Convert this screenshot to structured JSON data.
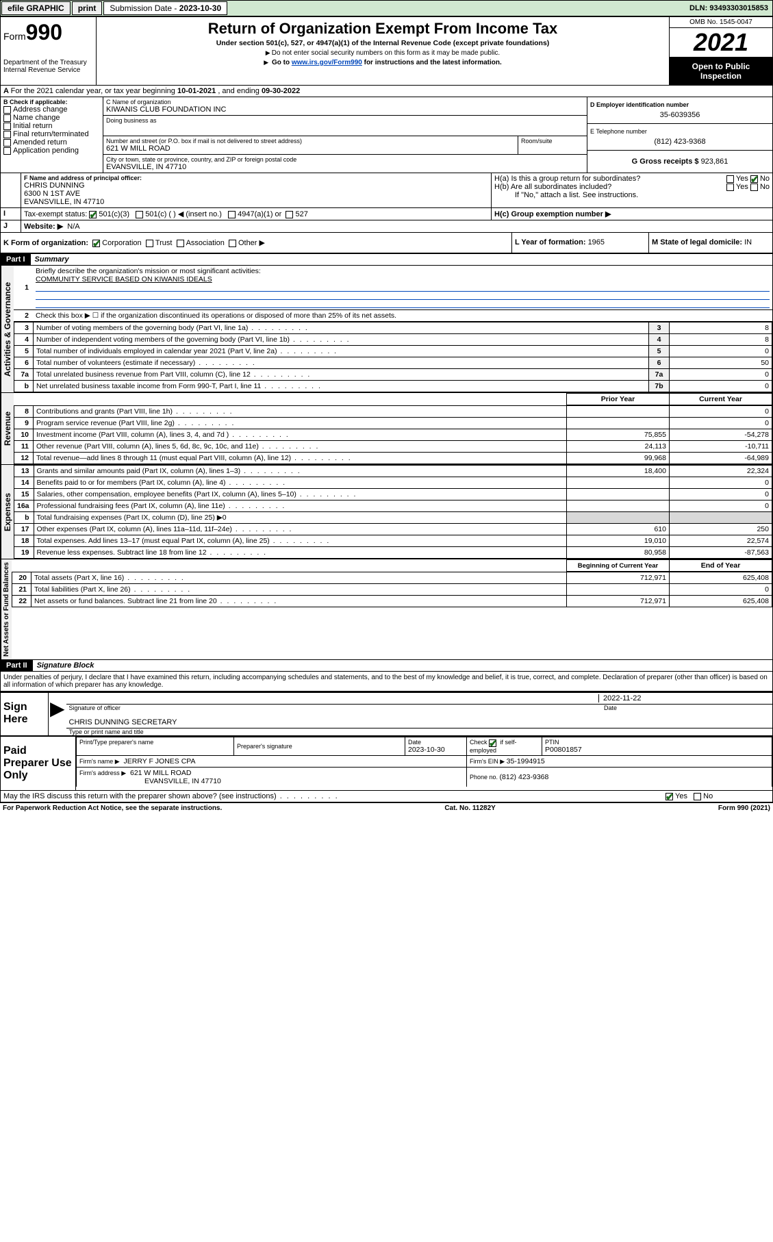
{
  "topbar": {
    "efile": "efile GRAPHIC",
    "print": "print",
    "sub_label": "Submission Date - ",
    "sub_date": "2023-10-30",
    "dln": "DLN: 93493303015853"
  },
  "header": {
    "form_label": "Form",
    "form_num": "990",
    "dept": "Department of the Treasury",
    "irs": "Internal Revenue Service",
    "title": "Return of Organization Exempt From Income Tax",
    "sub": "Under section 501(c), 527, or 4947(a)(1) of the Internal Revenue Code (except private foundations)",
    "note1": "Do not enter social security numbers on this form as it may be made public.",
    "note2_a": "Go to ",
    "note2_link": "www.irs.gov/Form990",
    "note2_b": " for instructions and the latest information.",
    "omb": "OMB No. 1545-0047",
    "year": "2021",
    "otpi": "Open to Public Inspection"
  },
  "blockA": {
    "a_text": "For the 2021 calendar year, or tax year beginning ",
    "a_begin": "10-01-2021",
    "a_mid": " , and ending ",
    "a_end": "09-30-2022",
    "b_label": "B Check if applicable:",
    "b_opts": [
      "Address change",
      "Name change",
      "Initial return",
      "Final return/terminated",
      "Amended return",
      "Application pending"
    ],
    "c_label": "C Name of organization",
    "c_name": "KIWANIS CLUB FOUNDATION INC",
    "dba_label": "Doing business as",
    "addr_label": "Number and street (or P.O. box if mail is not delivered to street address)",
    "room_label": "Room/suite",
    "addr": "621 W MILL ROAD",
    "city_label": "City or town, state or province, country, and ZIP or foreign postal code",
    "city": "EVANSVILLE, IN  47710",
    "d_label": "D Employer identification number",
    "d_ein": "35-6039356",
    "e_label": "E Telephone number",
    "e_phone": "(812) 423-9368",
    "g_label": "G Gross receipts $ ",
    "g_val": "923,861",
    "f_label": "F Name and address of principal officer:",
    "f_name": "CHRIS DUNNING",
    "f_addr1": "6300 N 1ST AVE",
    "f_addr2": "EVANSVILLE, IN  47710",
    "ha_label": "H(a)  Is this a group return for subordinates?",
    "hb_label": "H(b)  Are all subordinates included?",
    "h_note": "If \"No,\" attach a list. See instructions.",
    "hc_label": "H(c)  Group exemption number ▶",
    "i_label": "Tax-exempt status:",
    "i_501c3": "501(c)(3)",
    "i_501c": "501(c) (  ) ◀ (insert no.)",
    "i_4947": "4947(a)(1) or",
    "i_527": "527",
    "j_label": "Website: ▶",
    "j_val": "N/A",
    "k_label": "K Form of organization:",
    "k_opts": [
      "Corporation",
      "Trust",
      "Association",
      "Other ▶"
    ],
    "l_label": "L Year of formation: ",
    "l_val": "1965",
    "m_label": "M State of legal domicile: ",
    "m_val": "IN",
    "yes": "Yes",
    "no": "No"
  },
  "partI": {
    "hdr": "Part I",
    "title": "Summary",
    "sec1_label": "Activities & Governance",
    "l1": "Briefly describe the organization's mission or most significant activities:",
    "l1_val": "COMMUNITY SERVICE BASED ON KIWANIS IDEALS",
    "l2": "Check this box ▶ ☐  if the organization discontinued its operations or disposed of more than 25% of its net assets.",
    "rows_ag": [
      {
        "n": "3",
        "t": "Number of voting members of the governing body (Part VI, line 1a)",
        "i": "3",
        "v": "8"
      },
      {
        "n": "4",
        "t": "Number of independent voting members of the governing body (Part VI, line 1b)",
        "i": "4",
        "v": "8"
      },
      {
        "n": "5",
        "t": "Total number of individuals employed in calendar year 2021 (Part V, line 2a)",
        "i": "5",
        "v": "0"
      },
      {
        "n": "6",
        "t": "Total number of volunteers (estimate if necessary)",
        "i": "6",
        "v": "50"
      },
      {
        "n": "7a",
        "t": "Total unrelated business revenue from Part VIII, column (C), line 12",
        "i": "7a",
        "v": "0"
      },
      {
        "n": "b",
        "t": "Net unrelated business taxable income from Form 990-T, Part I, line 11",
        "i": "7b",
        "v": "0"
      }
    ],
    "col_prior": "Prior Year",
    "col_curr": "Current Year",
    "sec2_label": "Revenue",
    "rows_rev": [
      {
        "n": "8",
        "t": "Contributions and grants (Part VIII, line 1h)",
        "p": "",
        "c": "0"
      },
      {
        "n": "9",
        "t": "Program service revenue (Part VIII, line 2g)",
        "p": "",
        "c": "0"
      },
      {
        "n": "10",
        "t": "Investment income (Part VIII, column (A), lines 3, 4, and 7d )",
        "p": "75,855",
        "c": "-54,278"
      },
      {
        "n": "11",
        "t": "Other revenue (Part VIII, column (A), lines 5, 6d, 8c, 9c, 10c, and 11e)",
        "p": "24,113",
        "c": "-10,711"
      },
      {
        "n": "12",
        "t": "Total revenue—add lines 8 through 11 (must equal Part VIII, column (A), line 12)",
        "p": "99,968",
        "c": "-64,989"
      }
    ],
    "sec3_label": "Expenses",
    "rows_exp": [
      {
        "n": "13",
        "t": "Grants and similar amounts paid (Part IX, column (A), lines 1–3)",
        "p": "18,400",
        "c": "22,324"
      },
      {
        "n": "14",
        "t": "Benefits paid to or for members (Part IX, column (A), line 4)",
        "p": "",
        "c": "0"
      },
      {
        "n": "15",
        "t": "Salaries, other compensation, employee benefits (Part IX, column (A), lines 5–10)",
        "p": "",
        "c": "0"
      },
      {
        "n": "16a",
        "t": "Professional fundraising fees (Part IX, column (A), line 11e)",
        "p": "",
        "c": "0"
      },
      {
        "n": "b",
        "t": "Total fundraising expenses (Part IX, column (D), line 25) ▶0",
        "shade": true
      },
      {
        "n": "17",
        "t": "Other expenses (Part IX, column (A), lines 11a–11d, 11f–24e)",
        "p": "610",
        "c": "250"
      },
      {
        "n": "18",
        "t": "Total expenses. Add lines 13–17 (must equal Part IX, column (A), line 25)",
        "p": "19,010",
        "c": "22,574"
      },
      {
        "n": "19",
        "t": "Revenue less expenses. Subtract line 18 from line 12",
        "p": "80,958",
        "c": "-87,563"
      }
    ],
    "col_bcy": "Beginning of Current Year",
    "col_eoy": "End of Year",
    "sec4_label": "Net Assets or Fund Balances",
    "rows_na": [
      {
        "n": "20",
        "t": "Total assets (Part X, line 16)",
        "p": "712,971",
        "c": "625,408"
      },
      {
        "n": "21",
        "t": "Total liabilities (Part X, line 26)",
        "p": "",
        "c": "0"
      },
      {
        "n": "22",
        "t": "Net assets or fund balances. Subtract line 21 from line 20",
        "p": "712,971",
        "c": "625,408"
      }
    ]
  },
  "partII": {
    "hdr": "Part II",
    "title": "Signature Block",
    "decl": "Under penalties of perjury, I declare that I have examined this return, including accompanying schedules and statements, and to the best of my knowledge and belief, it is true, correct, and complete. Declaration of preparer (other than officer) is based on all information of which preparer has any knowledge.",
    "sign_here": "Sign Here",
    "sig_officer": "Signature of officer",
    "sig_date_label": "Date",
    "sig_date": "2022-11-22",
    "sig_name": "CHRIS DUNNING SECRETARY",
    "sig_type": "Type or print name and title",
    "paid": "Paid Preparer Use Only",
    "prep_name_label": "Print/Type preparer's name",
    "prep_sig_label": "Preparer's signature",
    "prep_date_label": "Date",
    "prep_date": "2023-10-30",
    "prep_check_label": "Check ☑ if self-employed",
    "ptin_label": "PTIN",
    "ptin": "P00801857",
    "firm_name_label": "Firm's name   ▶",
    "firm_name": "JERRY F JONES CPA",
    "firm_ein_label": "Firm's EIN ▶ ",
    "firm_ein": "35-1994915",
    "firm_addr_label": "Firm's address ▶",
    "firm_addr1": "621 W MILL ROAD",
    "firm_addr2": "EVANSVILLE, IN  47710",
    "firm_phone_label": "Phone no. ",
    "firm_phone": "(812) 423-9368",
    "discuss": "May the IRS discuss this return with the preparer shown above? (see instructions)"
  },
  "footer": {
    "pra": "For Paperwork Reduction Act Notice, see the separate instructions.",
    "cat": "Cat. No. 11282Y",
    "form": "Form 990 (2021)"
  },
  "colors": {
    "link": "#0047bb",
    "check_green": "#1a6b1a",
    "topbar_bg": "#d0e8d0"
  }
}
